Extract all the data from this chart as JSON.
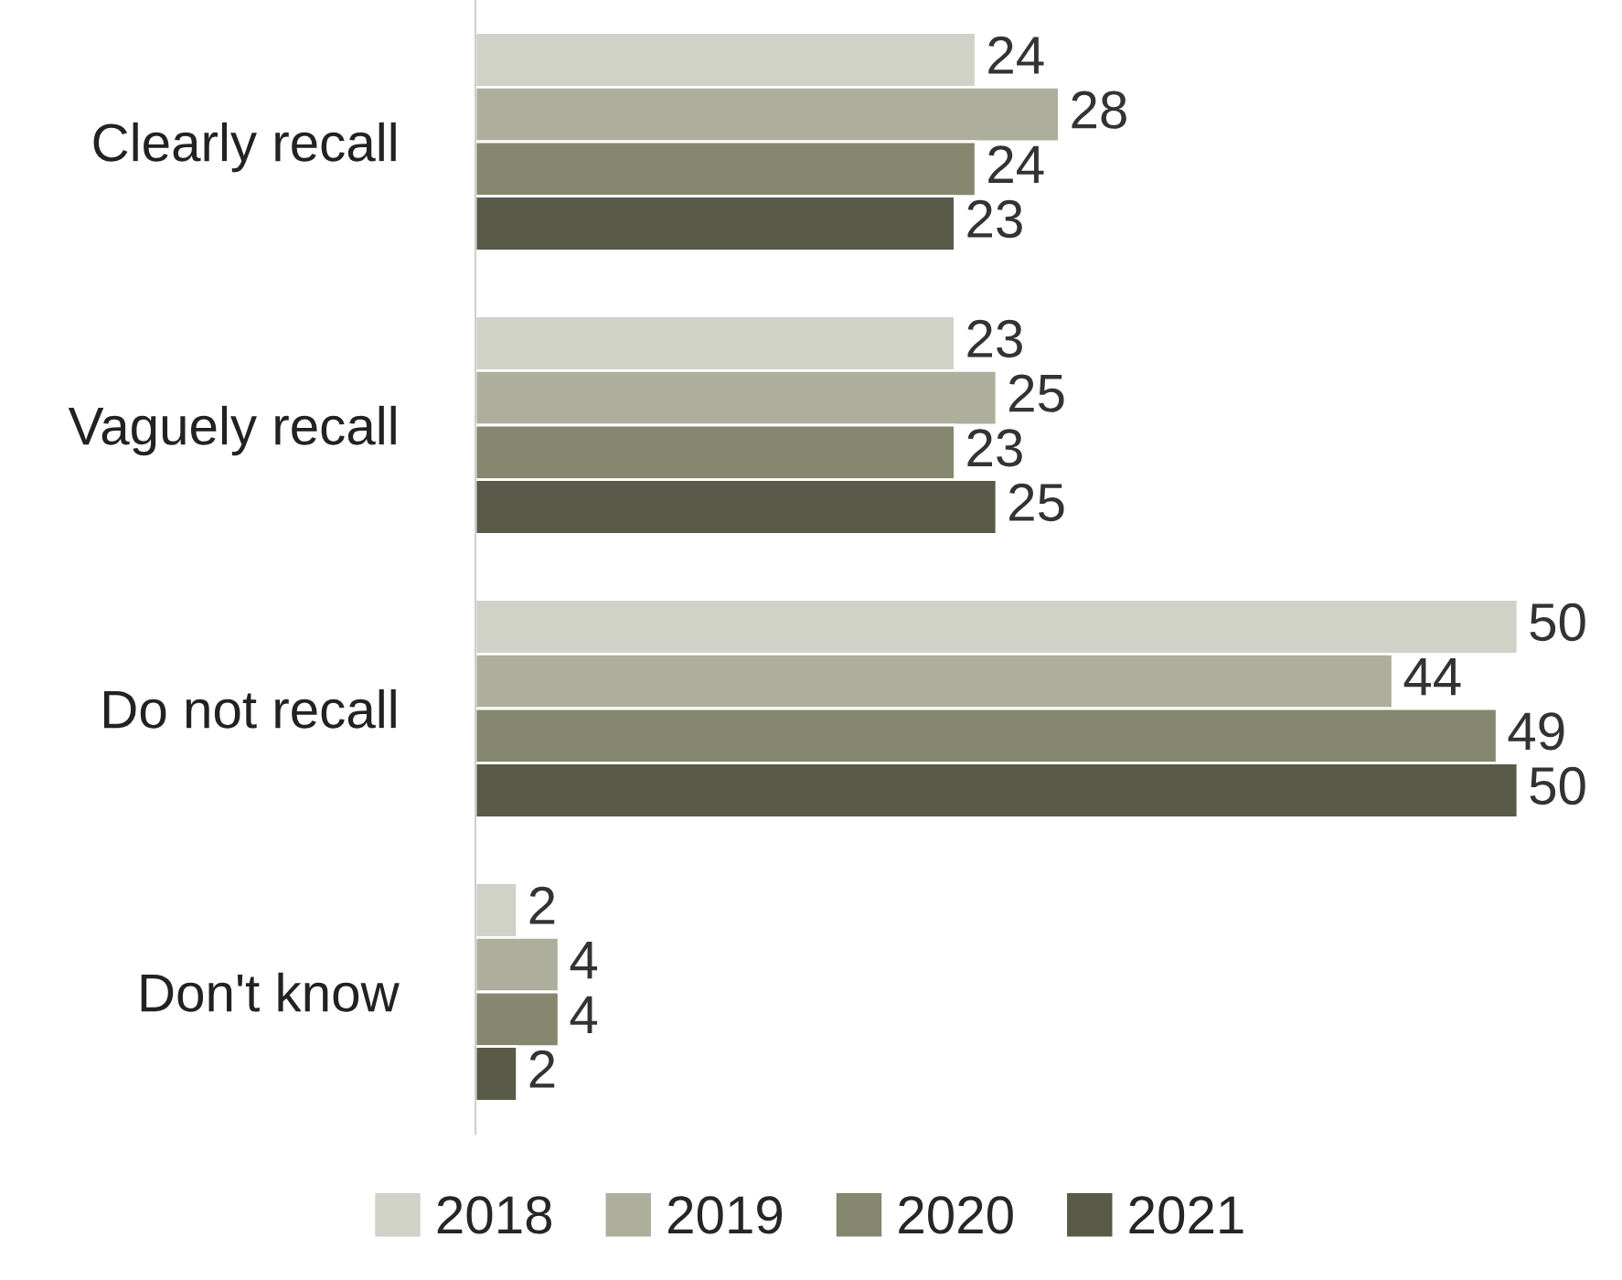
{
  "chart_data": {
    "type": "bar",
    "orientation": "horizontal",
    "categories": [
      "Clearly recall",
      "Vaguely recall",
      "Do not recall",
      "Don't know"
    ],
    "series": [
      {
        "name": "2018",
        "color": "#d0d1c7",
        "values": [
          24,
          23,
          50,
          2
        ]
      },
      {
        "name": "2019",
        "color": "#adaf9c",
        "values": [
          28,
          25,
          44,
          4
        ]
      },
      {
        "name": "2020",
        "color": "#85876e",
        "values": [
          24,
          23,
          49,
          4
        ]
      },
      {
        "name": "2021",
        "color": "#595a48",
        "values": [
          23,
          25,
          50,
          2
        ]
      }
    ],
    "data_labels": true,
    "legend": "bottom",
    "grid": false
  }
}
